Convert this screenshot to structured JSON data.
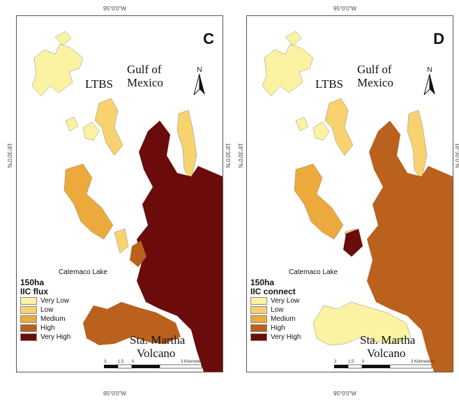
{
  "graticule": {
    "longitude": "95°0'0\"W",
    "latitude": "18°30'0\"N"
  },
  "panels": [
    {
      "letter": "C",
      "legend": {
        "title_1": "150ha",
        "title_2": "IIC flux"
      },
      "highlight_patch": "High"
    },
    {
      "letter": "D",
      "legend": {
        "title_1": "150ha",
        "title_2": "IIC connect"
      },
      "highlight_patch": "Very High"
    }
  ],
  "places": {
    "ltbs": "LTBS",
    "gulf_1": "Gulf of",
    "gulf_2": "Mexico",
    "lake": "Catemaco Lake",
    "volcano_1": "Sta. Martha",
    "volcano_2": "Volcano"
  },
  "north_label": "N",
  "scalebar": {
    "ticks": [
      "3",
      "1.5",
      "0",
      "3 Kilometers"
    ]
  },
  "legend_classes": [
    {
      "label": "Very Low",
      "color": "#fbf3a2"
    },
    {
      "label": "Low",
      "color": "#f7d26e"
    },
    {
      "label": "Medium",
      "color": "#ecaa3c"
    },
    {
      "label": "High",
      "color": "#b9611d"
    },
    {
      "label": "Very High",
      "color": "#6b0b0b"
    }
  ]
}
